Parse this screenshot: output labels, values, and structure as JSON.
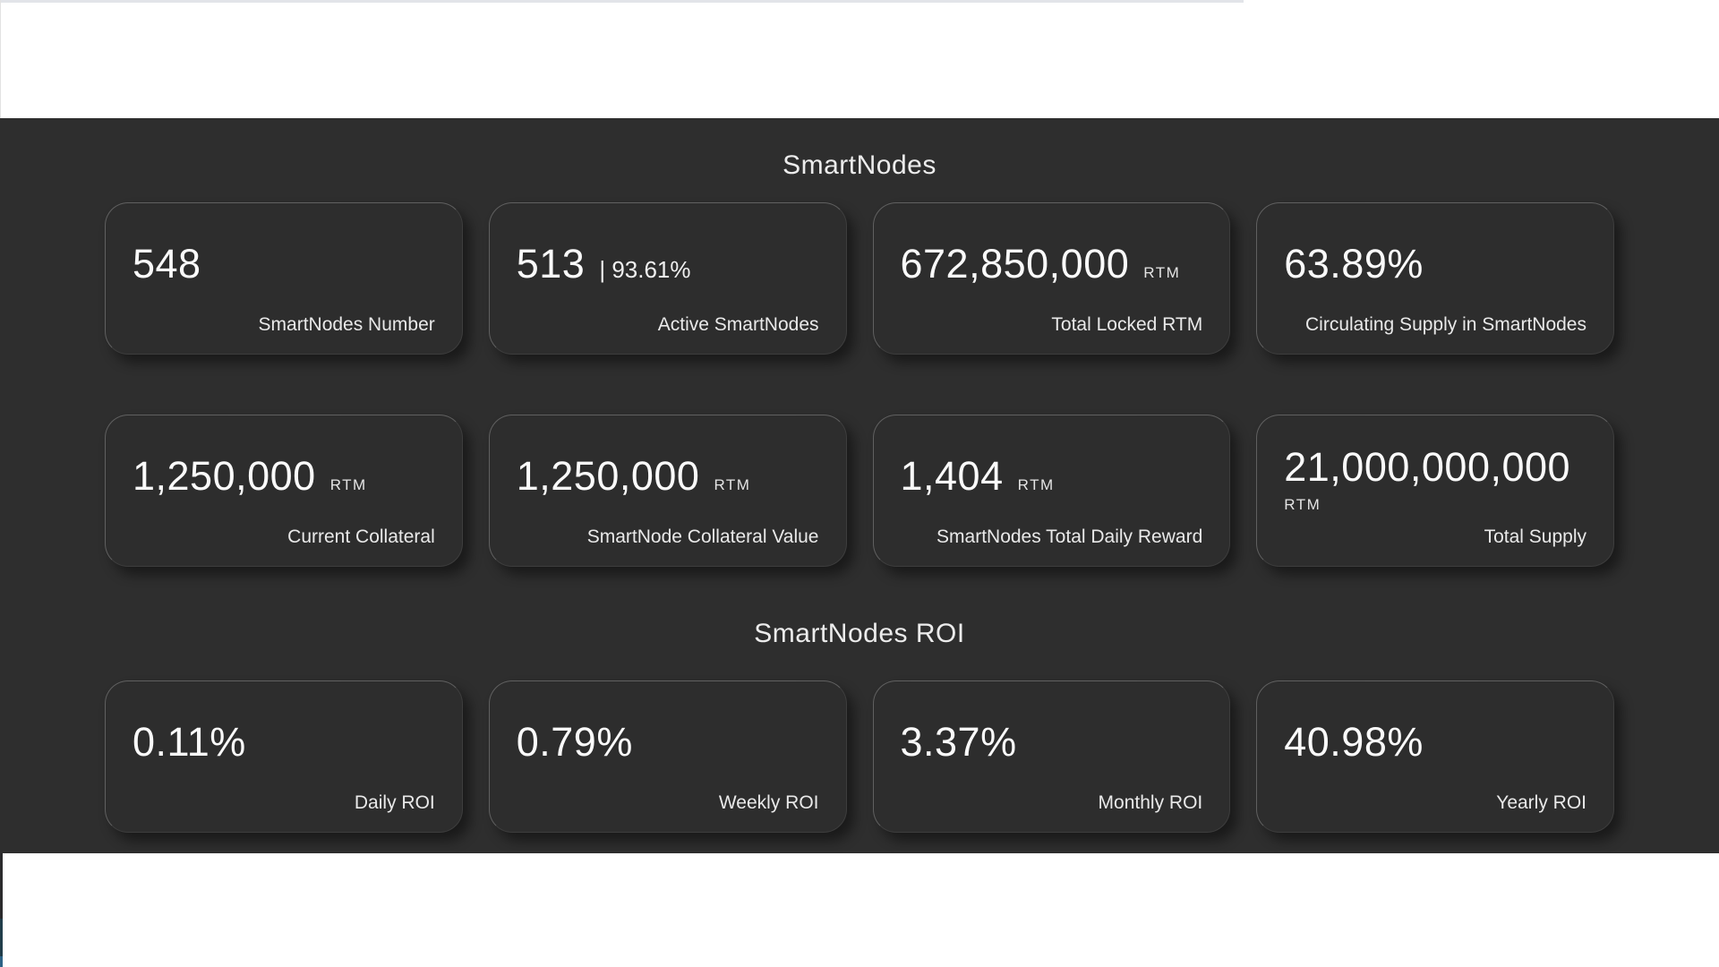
{
  "colors": {
    "dark_background": "#2e2e2e",
    "card_background": "#2d2d2d",
    "header_background": "#ffffff",
    "top_strip": "#e2e4e9",
    "edge_strip_dark": "#2a2a2c",
    "edge_strip_teal": "#213d4a",
    "edge_strip_blue": "#2d6386",
    "text_primary": "#fafafa",
    "text_secondary": "#e9e9e9"
  },
  "sections": {
    "smartnodes": {
      "title": "SmartNodes",
      "cards": [
        {
          "value": "548",
          "label": "SmartNodes Number"
        },
        {
          "value": "513",
          "sub_value": "| 93.61%",
          "label": "Active SmartNodes"
        },
        {
          "value": "672,850,000",
          "unit": "RTM",
          "label": "Total Locked RTM"
        },
        {
          "value": "63.89%",
          "label": "Circulating Supply in SmartNodes"
        },
        {
          "value": "1,250,000",
          "unit": "RTM",
          "label": "Current Collateral"
        },
        {
          "value": "1,250,000",
          "unit": "RTM",
          "label": "SmartNode Collateral Value"
        },
        {
          "value": "1,404",
          "unit": "RTM",
          "label": "SmartNodes Total Daily Reward"
        },
        {
          "value": "21,000,000,000",
          "unit": "RTM",
          "label": "Total Supply"
        }
      ]
    },
    "roi": {
      "title": "SmartNodes ROI",
      "cards": [
        {
          "value": "0.11%",
          "label": "Daily ROI"
        },
        {
          "value": "0.79%",
          "label": "Weekly ROI"
        },
        {
          "value": "3.37%",
          "label": "Monthly ROI"
        },
        {
          "value": "40.98%",
          "label": "Yearly ROI"
        }
      ]
    }
  }
}
